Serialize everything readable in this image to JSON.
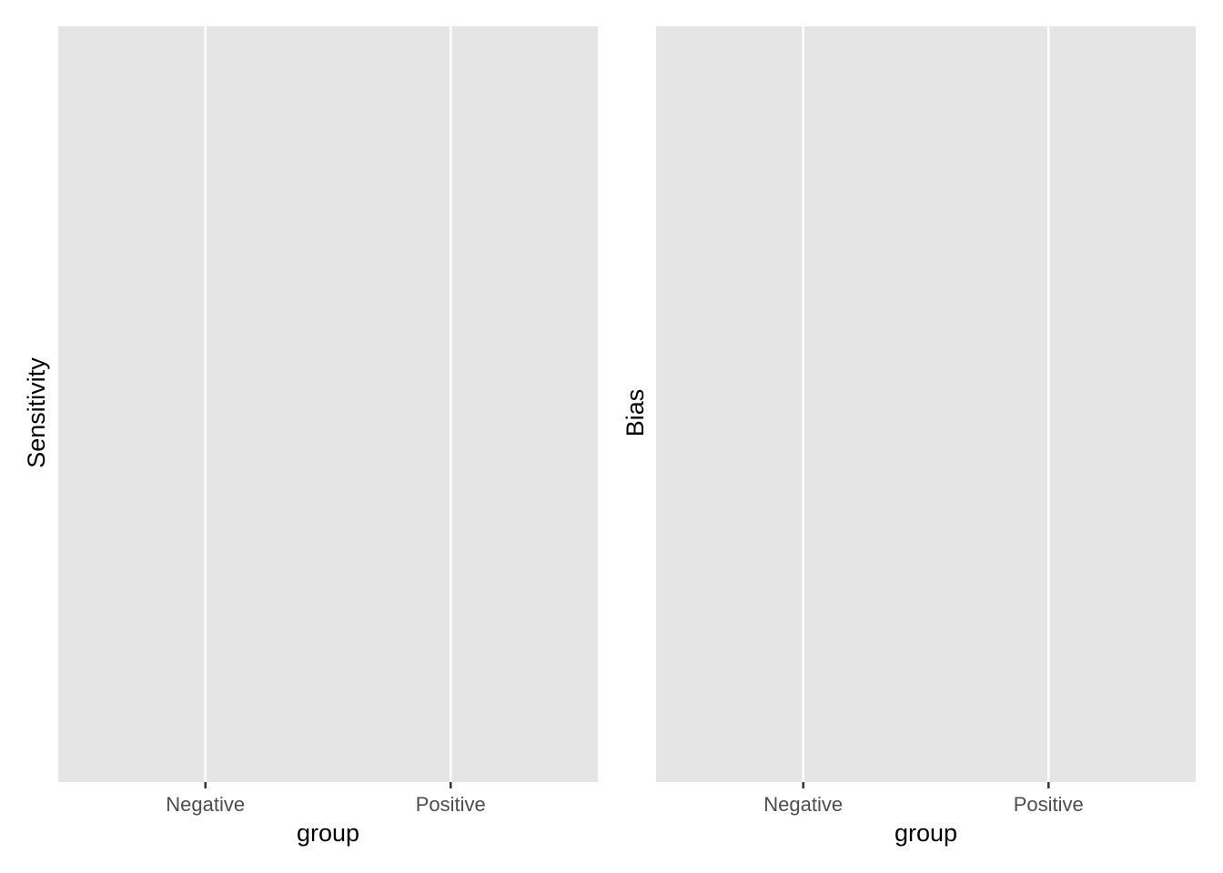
{
  "chart_data": [
    {
      "type": "scatter",
      "categories": [
        "Negative",
        "Positive"
      ],
      "series": [],
      "xlabel": "group",
      "ylabel": "Sensitivity",
      "grid": true,
      "legend": "none"
    },
    {
      "type": "scatter",
      "categories": [
        "Negative",
        "Positive"
      ],
      "series": [],
      "xlabel": "group",
      "ylabel": "Bias",
      "grid": true,
      "legend": "none"
    }
  ],
  "colors": {
    "panel_background": "#e5e5e5",
    "gridline": "#ffffff",
    "tick": "#333333",
    "tick_label": "#4d4d4d",
    "axis_title": "#000000"
  }
}
